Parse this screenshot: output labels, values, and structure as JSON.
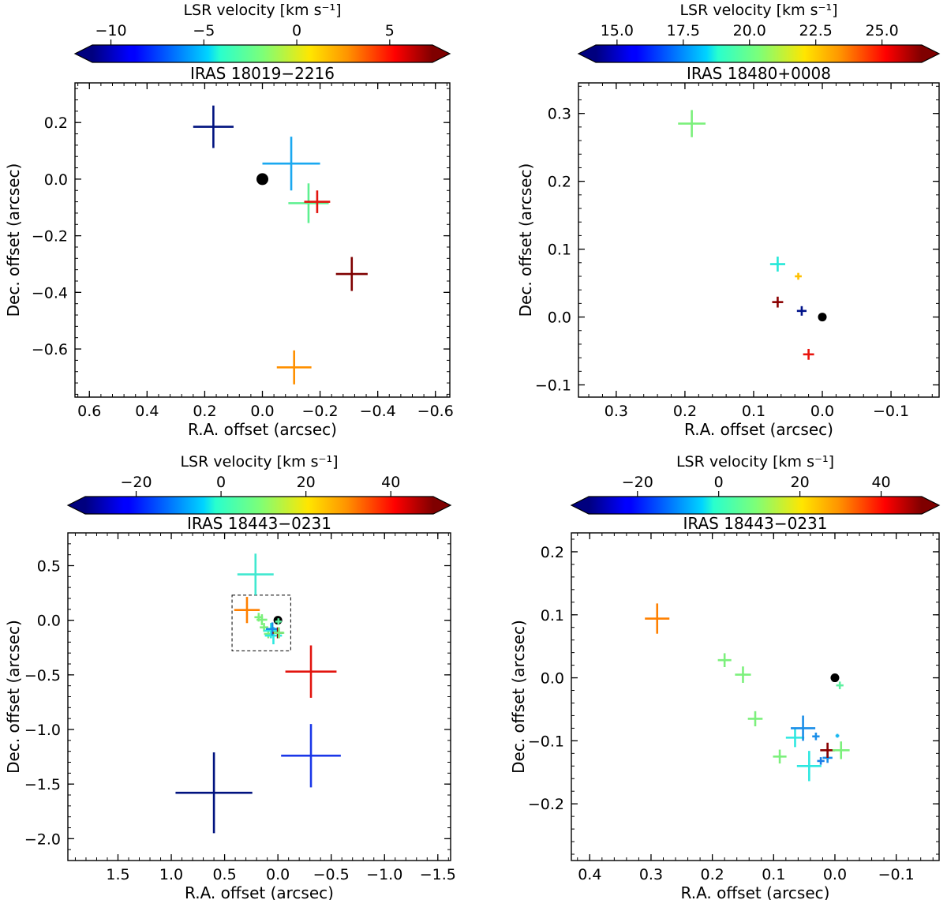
{
  "chart_data": [
    {
      "type": "scatter",
      "title": "IRAS 18019−2216",
      "xlabel": "R.A. offset (arcsec)",
      "ylabel": "Dec. offset (arcsec)",
      "xlim": [
        0.65,
        -0.65
      ],
      "ylim": [
        -0.77,
        0.34
      ],
      "xticks": [
        0.6,
        0.4,
        0.2,
        0.0,
        -0.2,
        -0.4,
        -0.6
      ],
      "xtick_labels": [
        "0.6",
        "0.4",
        "0.2",
        "0.0",
        "−0.2",
        "−0.4",
        "−0.6"
      ],
      "yticks": [
        0.2,
        0.0,
        -0.2,
        -0.4,
        -0.6
      ],
      "ytick_labels": [
        "0.2",
        "0.0",
        "−0.2",
        "−0.4",
        "−0.6"
      ],
      "colorbar": {
        "label": "LSR velocity [km s⁻¹]",
        "vmin": -11,
        "vmax": 7.3,
        "ticks": [
          -10,
          -5,
          0,
          5
        ],
        "tick_labels": [
          "−10",
          "−5",
          "0",
          "5"
        ]
      },
      "reference_point": {
        "x": 0.0,
        "y": 0.0,
        "color": "#000000"
      },
      "points": [
        {
          "x": 0.17,
          "y": 0.185,
          "xerr": 0.07,
          "yerr": 0.075,
          "vlsr": -10.5,
          "color": "#00127f"
        },
        {
          "x": -0.1,
          "y": 0.055,
          "xerr": 0.1,
          "yerr": 0.095,
          "vlsr": -3.0,
          "color": "#1aa8f0"
        },
        {
          "x": -0.16,
          "y": -0.085,
          "xerr": 0.07,
          "yerr": 0.07,
          "vlsr": 0.5,
          "color": "#5ef090"
        },
        {
          "x": -0.19,
          "y": -0.08,
          "xerr": 0.045,
          "yerr": 0.04,
          "vlsr": 6.0,
          "color": "#e2140e"
        },
        {
          "x": -0.31,
          "y": -0.335,
          "xerr": 0.055,
          "yerr": 0.06,
          "vlsr": 7.0,
          "color": "#7f0000"
        },
        {
          "x": -0.11,
          "y": -0.665,
          "xerr": 0.06,
          "yerr": 0.06,
          "vlsr": 4.0,
          "color": "#ff9000"
        }
      ]
    },
    {
      "type": "scatter",
      "title": "IRAS 18480+0008",
      "xlabel": "R.A. offset (arcsec)",
      "ylabel": "Dec. offset (arcsec)",
      "xlim": [
        0.355,
        -0.17
      ],
      "ylim": [
        -0.118,
        0.345
      ],
      "xticks": [
        0.3,
        0.2,
        0.1,
        0.0,
        -0.1
      ],
      "xtick_labels": [
        "0.3",
        "0.2",
        "0.1",
        "0.0",
        "−0.1"
      ],
      "yticks": [
        0.3,
        0.2,
        0.1,
        0.0,
        -0.1
      ],
      "ytick_labels": [
        "0.3",
        "0.2",
        "0.1",
        "0.0",
        "−0.1"
      ],
      "colorbar": {
        "label": "LSR velocity [km s⁻¹]",
        "vmin": 14.2,
        "vmax": 26.5,
        "ticks": [
          15.0,
          17.5,
          20.0,
          22.5,
          25.0
        ],
        "tick_labels": [
          "15.0",
          "17.5",
          "20.0",
          "22.5",
          "25.0"
        ]
      },
      "reference_point": {
        "x": 0.0,
        "y": 0.0,
        "color": "#000000"
      },
      "points": [
        {
          "x": 0.19,
          "y": 0.285,
          "xerr": 0.02,
          "yerr": 0.02,
          "vlsr": 20.0,
          "color": "#7cf07c"
        },
        {
          "x": 0.065,
          "y": 0.078,
          "xerr": 0.011,
          "yerr": 0.011,
          "vlsr": 18.8,
          "color": "#24e8d8"
        },
        {
          "x": 0.035,
          "y": 0.06,
          "xerr": 0.005,
          "yerr": 0.005,
          "vlsr": 23.0,
          "color": "#ffc000"
        },
        {
          "x": 0.065,
          "y": 0.022,
          "xerr": 0.008,
          "yerr": 0.008,
          "vlsr": 26.0,
          "color": "#8a0000"
        },
        {
          "x": 0.03,
          "y": 0.009,
          "xerr": 0.007,
          "yerr": 0.007,
          "vlsr": 14.5,
          "color": "#00128a"
        },
        {
          "x": 0.02,
          "y": -0.055,
          "xerr": 0.008,
          "yerr": 0.008,
          "vlsr": 25.0,
          "color": "#e8140e"
        }
      ]
    },
    {
      "type": "scatter",
      "title": "IRAS 18443−0231",
      "xlabel": "R.A. offset (arcsec)",
      "ylabel": "Dec. offset (arcsec)",
      "xlim": [
        1.97,
        -1.62
      ],
      "ylim": [
        -2.2,
        0.8
      ],
      "xticks": [
        1.5,
        1.0,
        0.5,
        0.0,
        -0.5,
        -1.0,
        -1.5
      ],
      "xtick_labels": [
        "1.5",
        "1.0",
        "0.5",
        "0.0",
        "−0.5",
        "−1.0",
        "−1.5"
      ],
      "yticks": [
        0.5,
        0.0,
        -0.5,
        -1.0,
        -1.5,
        -2.0
      ],
      "ytick_labels": [
        "0.5",
        "0.0",
        "−0.5",
        "−1.0",
        "−1.5",
        "−2.0"
      ],
      "colorbar": {
        "label": "LSR velocity [km s⁻¹]",
        "vmin": -32,
        "vmax": 50,
        "ticks": [
          -20,
          0,
          20,
          40
        ],
        "tick_labels": [
          "−20",
          "0",
          "20",
          "40"
        ]
      },
      "zoom_box": {
        "x0": 0.43,
        "x1": -0.12,
        "y0": -0.28,
        "y1": 0.23
      },
      "reference_point": {
        "x": 0.0,
        "y": 0.0,
        "color": "#000000"
      },
      "points": [
        {
          "x": 0.6,
          "y": -1.58,
          "xerr": 0.36,
          "yerr": 0.37,
          "vlsr": -28,
          "color": "#00127f"
        },
        {
          "x": -0.31,
          "y": -1.24,
          "xerr": 0.28,
          "yerr": 0.29,
          "vlsr": -22,
          "color": "#1a37e8"
        },
        {
          "x": -0.31,
          "y": -0.47,
          "xerr": 0.24,
          "yerr": 0.24,
          "vlsr": 35,
          "color": "#e2140e"
        },
        {
          "x": 0.21,
          "y": 0.42,
          "xerr": 0.17,
          "yerr": 0.19,
          "vlsr": 10,
          "color": "#40e8d0"
        },
        {
          "x": 0.29,
          "y": 0.094,
          "xerr": 0.12,
          "yerr": 0.12,
          "vlsr": 30,
          "color": "#ff8000"
        },
        {
          "x": 0.18,
          "y": 0.028,
          "xerr": 0.04,
          "yerr": 0.04,
          "vlsr": 15,
          "color": "#7cf07c"
        },
        {
          "x": 0.15,
          "y": 0.005,
          "xerr": 0.05,
          "yerr": 0.05,
          "vlsr": 15,
          "color": "#7cf07c"
        },
        {
          "x": 0.13,
          "y": -0.065,
          "xerr": 0.04,
          "yerr": 0.04,
          "vlsr": 15,
          "color": "#7cf07c"
        },
        {
          "x": 0.09,
          "y": -0.125,
          "xerr": 0.04,
          "yerr": 0.04,
          "vlsr": 15,
          "color": "#7cf07c"
        },
        {
          "x": 0.065,
          "y": -0.095,
          "xerr": 0.07,
          "yerr": 0.07,
          "vlsr": 11,
          "color": "#2ee8e0"
        },
        {
          "x": 0.042,
          "y": -0.14,
          "xerr": 0.08,
          "yerr": 0.08,
          "vlsr": 11,
          "color": "#2ee8e0"
        },
        {
          "x": 0.052,
          "y": -0.08,
          "xerr": 0.06,
          "yerr": 0.06,
          "vlsr": 0,
          "color": "#1a8ee8"
        },
        {
          "x": 0.0,
          "y": -0.115,
          "xerr": 0.05,
          "yerr": 0.05,
          "vlsr": 48,
          "color": "#8a0000"
        },
        {
          "x": -0.01,
          "y": -0.115,
          "xerr": 0.05,
          "yerr": 0.05,
          "vlsr": 14,
          "color": "#7cf07c"
        },
        {
          "x": -0.005,
          "y": -0.012,
          "xerr": 0.03,
          "yerr": 0.03,
          "vlsr": 12,
          "color": "#5ef0a0"
        }
      ]
    },
    {
      "type": "scatter",
      "title": "IRAS 18443−0231",
      "xlabel": "R.A. offset (arcsec)",
      "ylabel": "Dec. offset (arcsec)",
      "xlim": [
        0.43,
        -0.17
      ],
      "ylim": [
        -0.29,
        0.23
      ],
      "xticks": [
        0.4,
        0.3,
        0.2,
        0.1,
        0.0,
        -0.1
      ],
      "xtick_labels": [
        "0.4",
        "0.3",
        "0.2",
        "0.1",
        "0.0",
        "−0.1"
      ],
      "yticks": [
        0.2,
        0.1,
        0.0,
        -0.1,
        -0.2
      ],
      "ytick_labels": [
        "0.2",
        "0.1",
        "0.0",
        "−0.1",
        "−0.2"
      ],
      "colorbar": {
        "label": "LSR velocity [km s⁻¹]",
        "vmin": -32,
        "vmax": 50,
        "ticks": [
          -20,
          0,
          20,
          40
        ],
        "tick_labels": [
          "−20",
          "0",
          "20",
          "40"
        ]
      },
      "reference_point": {
        "x": 0.0,
        "y": 0.0,
        "color": "#000000"
      },
      "points": [
        {
          "x": 0.29,
          "y": 0.094,
          "xerr": 0.02,
          "yerr": 0.024,
          "vlsr": 30,
          "color": "#ff8000"
        },
        {
          "x": 0.18,
          "y": 0.028,
          "xerr": 0.011,
          "yerr": 0.011,
          "vlsr": 15,
          "color": "#7cf07c"
        },
        {
          "x": 0.15,
          "y": 0.005,
          "xerr": 0.013,
          "yerr": 0.013,
          "vlsr": 15,
          "color": "#7cf07c"
        },
        {
          "x": 0.13,
          "y": -0.065,
          "xerr": 0.012,
          "yerr": 0.012,
          "vlsr": 15,
          "color": "#7cf07c"
        },
        {
          "x": 0.09,
          "y": -0.125,
          "xerr": 0.011,
          "yerr": 0.011,
          "vlsr": 15,
          "color": "#7cf07c"
        },
        {
          "x": 0.065,
          "y": -0.095,
          "xerr": 0.015,
          "yerr": 0.015,
          "vlsr": 11,
          "color": "#2ee8e0"
        },
        {
          "x": 0.052,
          "y": -0.08,
          "xerr": 0.02,
          "yerr": 0.02,
          "vlsr": 0,
          "color": "#1a8ee8"
        },
        {
          "x": 0.042,
          "y": -0.14,
          "xerr": 0.02,
          "yerr": 0.024,
          "vlsr": 11,
          "color": "#2ee8e0"
        },
        {
          "x": 0.031,
          "y": -0.093,
          "xerr": 0.006,
          "yerr": 0.006,
          "vlsr": -2,
          "color": "#1a8ee8"
        },
        {
          "x": 0.023,
          "y": -0.132,
          "xerr": 0.006,
          "yerr": 0.006,
          "vlsr": -4,
          "color": "#1a7ee8"
        },
        {
          "x": 0.012,
          "y": -0.127,
          "xerr": 0.008,
          "yerr": 0.008,
          "vlsr": 0,
          "color": "#1a8ee8"
        },
        {
          "x": 0.012,
          "y": -0.115,
          "xerr": 0.012,
          "yerr": 0.012,
          "vlsr": 48,
          "color": "#8a0000"
        },
        {
          "x": -0.01,
          "y": -0.115,
          "xerr": 0.014,
          "yerr": 0.014,
          "vlsr": 14,
          "color": "#7cf07c"
        },
        {
          "x": -0.004,
          "y": -0.092,
          "xerr": 0.003,
          "yerr": 0.003,
          "vlsr": 4,
          "color": "#1ab8f0"
        },
        {
          "x": -0.008,
          "y": -0.012,
          "xerr": 0.006,
          "yerr": 0.006,
          "vlsr": 12,
          "color": "#5ef0a0"
        }
      ]
    }
  ]
}
